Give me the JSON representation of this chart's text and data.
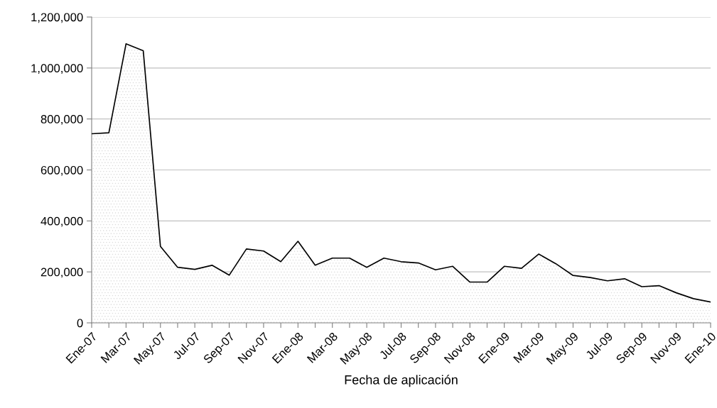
{
  "chart_data": {
    "type": "area",
    "xlabel": "Fecha de aplicación",
    "categories": [
      "Ene-07",
      null,
      "Mar-07",
      null,
      "May-07",
      null,
      "Jul-07",
      null,
      "Sep-07",
      null,
      "Nov-07",
      null,
      "Ene-08",
      null,
      "Mar-08",
      null,
      "May-08",
      null,
      "Jul-08",
      null,
      "Sep-08",
      null,
      "Nov-08",
      null,
      "Ene-09",
      null,
      "Mar-09",
      null,
      "May-09",
      null,
      "Jul-09",
      null,
      "Sep-09",
      null,
      "Nov-09",
      null,
      "Ene-10"
    ],
    "series": [
      {
        "color": "#d9d9d9",
        "values": [
          742000,
          746000,
          1095000,
          1068000,
          300000,
          218000,
          210000,
          226000,
          187000,
          290000,
          282000,
          240000,
          320000,
          226000,
          254000,
          254000,
          218000,
          254000,
          240000,
          235000,
          208000,
          222000,
          160000,
          160000,
          222000,
          214000,
          270000,
          232000,
          186000,
          178000,
          165000,
          173000,
          142000,
          146000,
          118000,
          95000,
          82000
        ]
      }
    ],
    "ylim": [
      0,
      1200000
    ],
    "yticks": [
      {
        "value": 0,
        "label": "0"
      },
      {
        "value": 200000,
        "label": "200,000"
      },
      {
        "value": 400000,
        "label": "400,000"
      },
      {
        "value": 600000,
        "label": "600,000"
      },
      {
        "value": 800000,
        "label": "800,000"
      },
      {
        "value": 1000000,
        "label": "1,000,000"
      },
      {
        "value": 1200000,
        "label": "1,200,000"
      }
    ],
    "grid": "y"
  }
}
